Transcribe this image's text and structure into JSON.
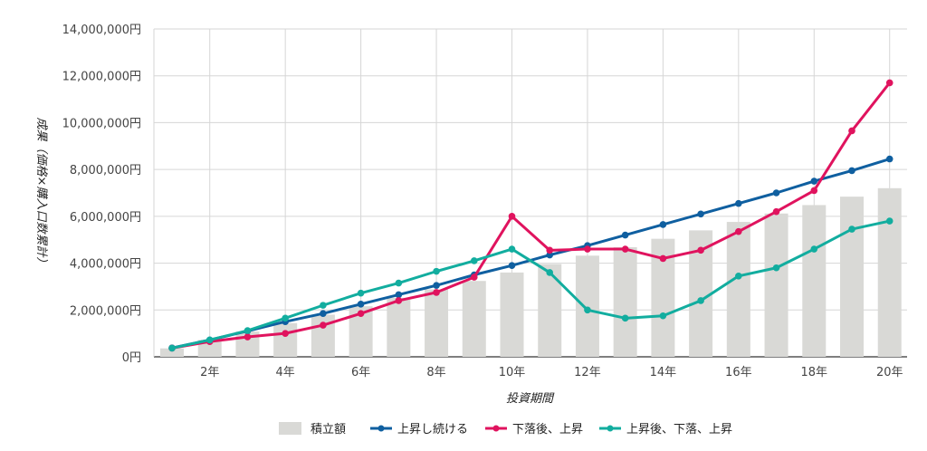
{
  "chart_data": {
    "type": "bar+line",
    "xlabel": "投資期間",
    "ylabel": "成果（価格×購入口数累計）",
    "ylim": [
      0,
      14000000
    ],
    "yticks": [
      0,
      2000000,
      4000000,
      6000000,
      8000000,
      10000000,
      12000000,
      14000000
    ],
    "ytick_labels": [
      "0円",
      "2,000,000円",
      "4,000,000円",
      "6,000,000円",
      "8,000,000円",
      "10,000,000円",
      "12,000,000円",
      "14,000,000円"
    ],
    "x": [
      1,
      2,
      3,
      4,
      5,
      6,
      7,
      8,
      9,
      10,
      11,
      12,
      13,
      14,
      15,
      16,
      17,
      18,
      19,
      20
    ],
    "xtick_labels": [
      "2年",
      "4年",
      "6年",
      "8年",
      "10年",
      "12年",
      "14年",
      "16年",
      "18年",
      "20年"
    ],
    "xtick_values": [
      2,
      4,
      6,
      8,
      10,
      12,
      14,
      16,
      18,
      20
    ],
    "grid": true,
    "legend_position": "bottom",
    "bars": {
      "name": "積立額",
      "color": "#d9d9d6",
      "values": [
        360000,
        720000,
        1080000,
        1440000,
        1800000,
        2160000,
        2520000,
        2880000,
        3240000,
        3600000,
        3960000,
        4320000,
        4680000,
        5040000,
        5400000,
        5760000,
        6120000,
        6480000,
        6840000,
        7200000
      ]
    },
    "series": [
      {
        "name": "上昇し続ける",
        "color": "#0f5fa0",
        "values": [
          380000,
          720000,
          1100000,
          1500000,
          1850000,
          2250000,
          2650000,
          3050000,
          3500000,
          3900000,
          4350000,
          4750000,
          5200000,
          5650000,
          6100000,
          6550000,
          7000000,
          7500000,
          7950000,
          8450000
        ]
      },
      {
        "name": "下落後、上昇",
        "color": "#e0135e",
        "values": [
          370000,
          650000,
          850000,
          1000000,
          1350000,
          1850000,
          2400000,
          2750000,
          3400000,
          6000000,
          4550000,
          4600000,
          4600000,
          4200000,
          4550000,
          5350000,
          6200000,
          7100000,
          9650000,
          11700000
        ]
      },
      {
        "name": "上昇後、下落、上昇",
        "color": "#12ad9f",
        "values": [
          370000,
          720000,
          1120000,
          1650000,
          2200000,
          2720000,
          3150000,
          3650000,
          4100000,
          4600000,
          3600000,
          2000000,
          1650000,
          1750000,
          2400000,
          3450000,
          3800000,
          4600000,
          5450000,
          5800000
        ]
      }
    ]
  }
}
